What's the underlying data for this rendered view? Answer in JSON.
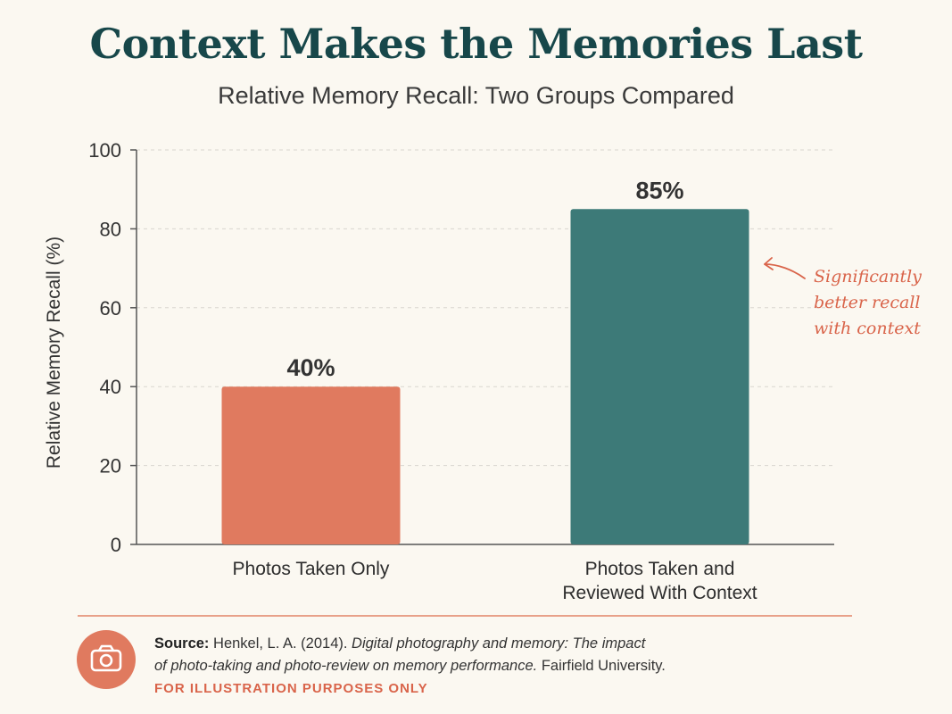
{
  "header": {
    "title": "Context Makes the Memories Last",
    "subtitle": "Relative Memory Recall: Two Groups Compared"
  },
  "chart_data": {
    "type": "bar",
    "title": "Context Makes the Memories Last",
    "subtitle": "Relative Memory Recall: Two Groups Compared",
    "ylabel": "Relative Memory Recall (%)",
    "xlabel": "",
    "ylim": [
      0,
      100
    ],
    "yticks": [
      0,
      20,
      40,
      60,
      80,
      100
    ],
    "grid": true,
    "categories": [
      [
        "Photos Taken Only"
      ],
      [
        "Photos Taken and",
        "Reviewed With Context"
      ]
    ],
    "values": [
      40,
      85
    ],
    "value_labels": [
      "40%",
      "85%"
    ],
    "colors": [
      "#e07a5f",
      "#3d7a78"
    ],
    "annotation": "Significantly better recall with context",
    "annotation_lines": [
      "Significantly",
      "better recall",
      "with context"
    ]
  },
  "footer": {
    "source_label": "Source:",
    "source_author": "Henkel, L. A. (2014).",
    "source_title_line1": "Digital photography and memory: The impact",
    "source_title_line2": "of photo-taking and photo-review on memory performance.",
    "source_publisher": "Fairfield University.",
    "disclaimer": "FOR ILLUSTRATION PURPOSES ONLY",
    "icon": "camera-icon"
  },
  "colors": {
    "background": "#fbf8f1",
    "title": "#17474a",
    "accent": "#e07a5f",
    "teal": "#3d7a78"
  }
}
